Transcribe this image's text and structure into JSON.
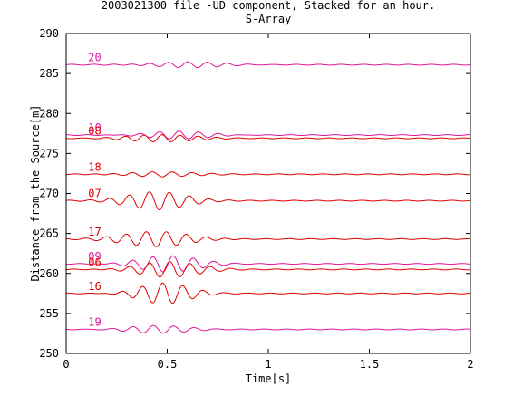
{
  "chart_data": {
    "type": "line",
    "title": "2003021300 file -UD component, Stacked for an hour.",
    "subtitle": "S-Array",
    "xlabel": "Time[s]",
    "ylabel": "Distance from the Source[m]",
    "xlim": [
      0,
      2
    ],
    "ylim": [
      250,
      290
    ],
    "xticks": [
      {
        "value": 0,
        "label": "0"
      },
      {
        "value": 0.5,
        "label": "0.5"
      },
      {
        "value": 1,
        "label": "1"
      },
      {
        "value": 1.5,
        "label": "1.5"
      },
      {
        "value": 2,
        "label": "2"
      }
    ],
    "yticks": [
      {
        "value": 250,
        "label": "250"
      },
      {
        "value": 255,
        "label": "255"
      },
      {
        "value": 260,
        "label": "260"
      },
      {
        "value": 265,
        "label": "265"
      },
      {
        "value": 270,
        "label": "270"
      },
      {
        "value": 275,
        "label": "275"
      },
      {
        "value": 280,
        "label": "280"
      },
      {
        "value": 285,
        "label": "285"
      },
      {
        "value": 290,
        "label": "290"
      }
    ],
    "grid": false,
    "legend": "none",
    "series": [
      {
        "name": "20",
        "offset": 286.1,
        "color": "#e0149a",
        "amp": 0.35,
        "center": 0.58,
        "width": 0.24,
        "freq": 10.5
      },
      {
        "name": "10",
        "offset": 277.3,
        "color": "#e0149a",
        "amp": 0.45,
        "center": 0.55,
        "width": 0.22,
        "freq": 10.5
      },
      {
        "name": "08",
        "offset": 276.9,
        "color": "#e00000",
        "amp": 0.5,
        "center": 0.48,
        "width": 0.2,
        "freq": 11
      },
      {
        "name": "18",
        "offset": 272.4,
        "color": "#e00000",
        "amp": 0.35,
        "center": 0.45,
        "width": 0.22,
        "freq": 10
      },
      {
        "name": "07",
        "offset": 269.1,
        "color": "#e00000",
        "amp": 1.2,
        "center": 0.45,
        "width": 0.2,
        "freq": 10
      },
      {
        "name": "17",
        "offset": 264.3,
        "color": "#e00000",
        "amp": 1.0,
        "center": 0.45,
        "width": 0.22,
        "freq": 10
      },
      {
        "name": "09",
        "offset": 261.2,
        "color": "#e0149a",
        "amp": 1.0,
        "center": 0.5,
        "width": 0.2,
        "freq": 10
      },
      {
        "name": "06",
        "offset": 260.5,
        "color": "#e00000",
        "amp": 1.0,
        "center": 0.5,
        "width": 0.2,
        "freq": 10
      },
      {
        "name": "16",
        "offset": 257.5,
        "color": "#e00000",
        "amp": 1.3,
        "center": 0.48,
        "width": 0.17,
        "freq": 10
      },
      {
        "name": "19",
        "offset": 253.0,
        "color": "#e0149a",
        "amp": 0.45,
        "center": 0.45,
        "width": 0.2,
        "freq": 10
      }
    ],
    "label_x": 0.1
  }
}
